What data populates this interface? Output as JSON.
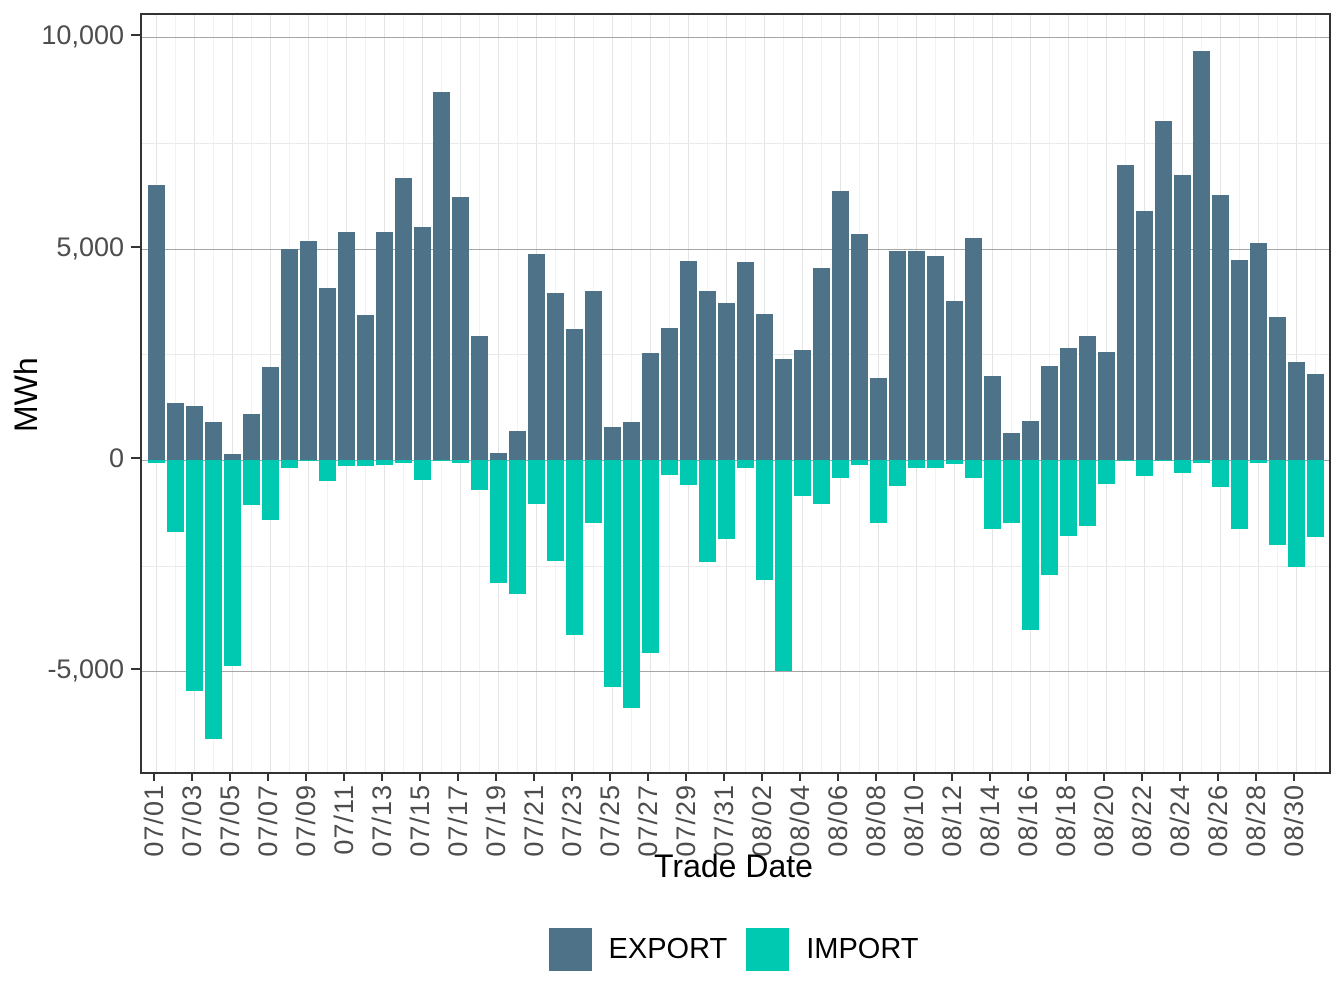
{
  "chart_data": {
    "type": "bar",
    "title": "",
    "xlabel": "Trade Date",
    "ylabel": "MWh",
    "legend_position": "bottom",
    "grid": true,
    "x_tick_every": 2,
    "categories": [
      "07/01",
      "07/02",
      "07/03",
      "07/04",
      "07/05",
      "07/06",
      "07/07",
      "07/08",
      "07/09",
      "07/10",
      "07/11",
      "07/12",
      "07/13",
      "07/14",
      "07/15",
      "07/16",
      "07/17",
      "07/18",
      "07/19",
      "07/20",
      "07/21",
      "07/22",
      "07/23",
      "07/24",
      "07/25",
      "07/26",
      "07/27",
      "07/28",
      "07/29",
      "07/30",
      "07/31",
      "08/01",
      "08/02",
      "08/03",
      "08/04",
      "08/05",
      "08/06",
      "08/07",
      "08/08",
      "08/09",
      "08/10",
      "08/11",
      "08/12",
      "08/13",
      "08/14",
      "08/15",
      "08/16",
      "08/17",
      "08/18",
      "08/19",
      "08/20",
      "08/21",
      "08/22",
      "08/23",
      "08/24",
      "08/25",
      "08/26",
      "08/27",
      "08/28",
      "08/29",
      "08/30",
      "08/31"
    ],
    "series": [
      {
        "name": "EXPORT",
        "color": "#4E7389",
        "values": [
          6500,
          1350,
          1280,
          900,
          150,
          1100,
          2200,
          5000,
          5190,
          4080,
          5400,
          3430,
          5400,
          6670,
          5510,
          8710,
          6220,
          2930,
          170,
          690,
          4880,
          3960,
          3110,
          3990,
          770,
          890,
          2530,
          3130,
          4710,
          3990,
          3720,
          4690,
          3450,
          2390,
          2610,
          4540,
          6370,
          5350,
          1940,
          4950,
          4940,
          4830,
          3760,
          5260,
          1980,
          650,
          930,
          2230,
          2650,
          2930,
          2560,
          6990,
          5890,
          8030,
          6750,
          9680,
          6260,
          4740,
          5130,
          3380,
          2320,
          2040
        ]
      },
      {
        "name": "IMPORT",
        "color": "#00C9B1",
        "values": [
          -70,
          -1700,
          -5460,
          -6600,
          -4870,
          -1070,
          -1410,
          -200,
          -20,
          -500,
          -140,
          -140,
          -130,
          -80,
          -470,
          -30,
          -70,
          -700,
          -2900,
          -3160,
          -1050,
          -2390,
          -4130,
          -1490,
          -5380,
          -5860,
          -4560,
          -360,
          -600,
          -2410,
          -1880,
          -180,
          -2850,
          -5000,
          -860,
          -1040,
          -430,
          -110,
          -1490,
          -610,
          -200,
          -180,
          -90,
          -430,
          -1630,
          -1490,
          -4020,
          -2720,
          -1810,
          -1570,
          -560,
          -20,
          -370,
          -30,
          -300,
          -60,
          -640,
          -1640,
          -60,
          -2020,
          -2540,
          -1830
        ]
      }
    ],
    "y_axis": {
      "ticks": [
        {
          "label": "10,000",
          "value": 10000
        },
        {
          "label": "5,000",
          "value": 5000
        },
        {
          "label": "0",
          "value": 0
        },
        {
          "label": "-5,000",
          "value": -5000
        }
      ],
      "minor_gridlines": [
        7500,
        2500,
        -2500
      ],
      "range": [
        -7430,
        10600
      ]
    }
  },
  "axis_titles": {
    "x": "Trade Date",
    "y": "MWh"
  },
  "legend": {
    "items": [
      {
        "label": "EXPORT",
        "color": "#4E7389"
      },
      {
        "label": "IMPORT",
        "color": "#00C9B1"
      }
    ]
  }
}
